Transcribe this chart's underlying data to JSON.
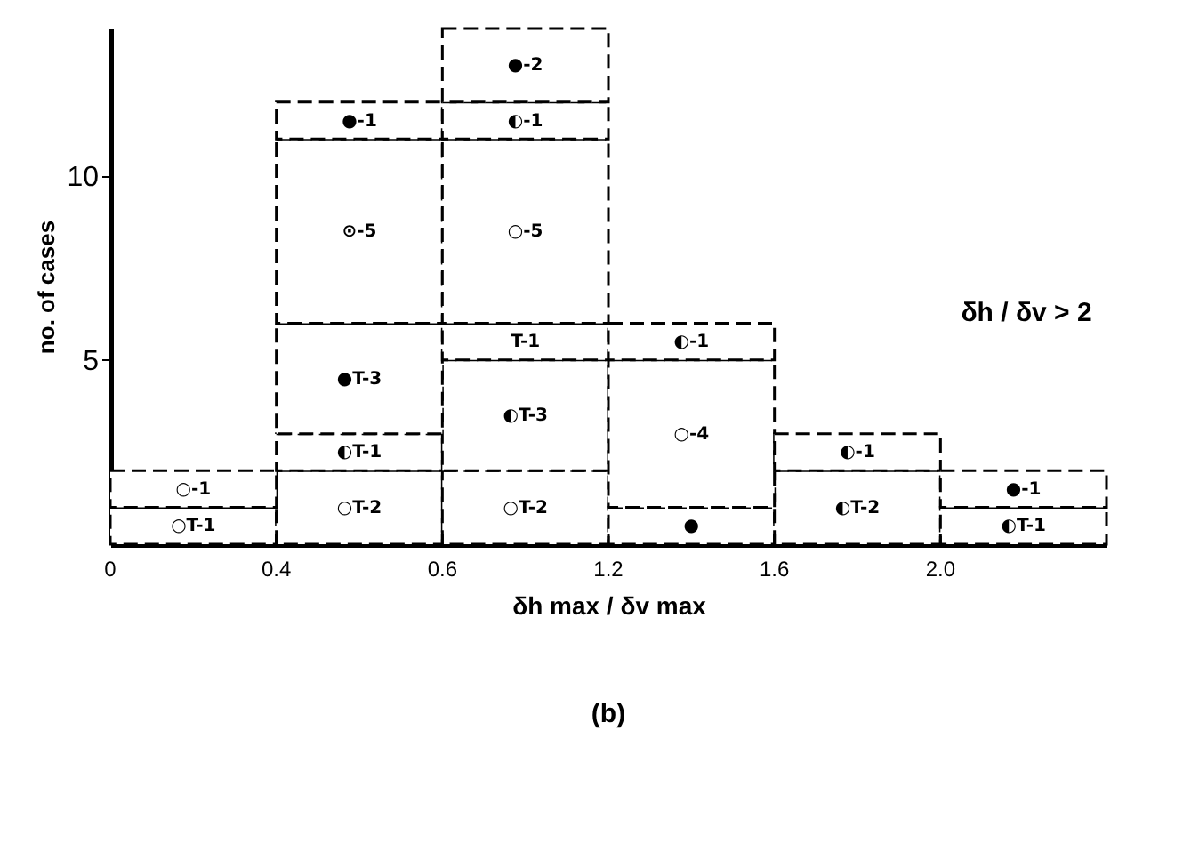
{
  "chart_data": {
    "type": "bar",
    "stacked": true,
    "categories": [
      null,
      null,
      null,
      null,
      null,
      null
    ],
    "ylim": [
      0,
      14
    ],
    "yticks": [
      5,
      10
    ],
    "xlabel": "δh max / δv max",
    "ylabel": "no. of cases",
    "grid": false,
    "series": [
      {
        "color": "#ffffff",
        "values": [
          1,
          2,
          2,
          1,
          2,
          1
        ]
      },
      {
        "color": "#ffffff",
        "values": [
          1,
          1,
          3,
          4,
          1,
          1
        ]
      },
      {
        "color": "#ffffff",
        "values": [
          null,
          3,
          1,
          1,
          null,
          null
        ]
      },
      {
        "color": "#ffffff",
        "values": [
          null,
          5,
          5,
          null,
          null,
          null
        ]
      },
      {
        "color": "#ffffff",
        "values": [
          null,
          1,
          1,
          null,
          null,
          null
        ]
      },
      {
        "color": "#ffffff",
        "values": [
          null,
          null,
          2,
          null,
          null,
          null
        ]
      }
    ],
    "annotations": [
      "δh / δv > 2",
      "(b)",
      "0",
      "0.4",
      "0.6",
      "1.2",
      "1.6",
      "2.0",
      "○T-1",
      "○-1",
      "○T-2",
      "◐T-1",
      "●T-3",
      "⊙-5",
      "●-1",
      "○T-2",
      "◐T-3",
      "T-1",
      "○-5",
      "◐-1",
      "●-2",
      "●",
      "○-4",
      "◐-1",
      "◐T-2",
      "◐-1",
      "◐T-1",
      "●-1"
    ]
  }
}
